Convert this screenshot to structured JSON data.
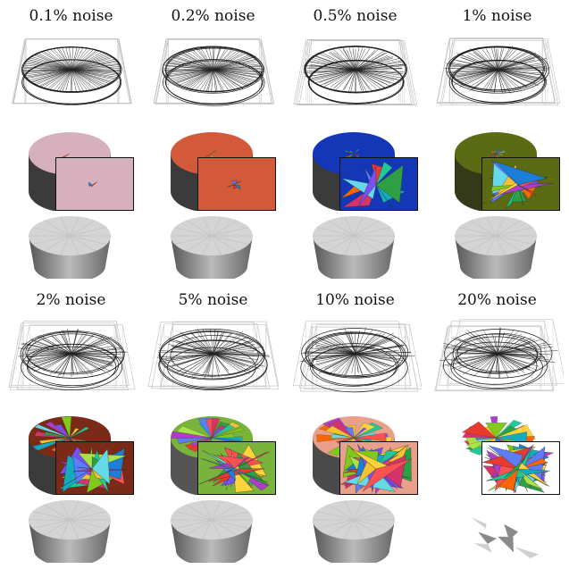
{
  "figure": {
    "panels": [
      {
        "label": "0.1% noise",
        "noise_percent": 0.1,
        "top_color": "#d6b0bd",
        "side_color": "#3b3b3b",
        "shards": 1
      },
      {
        "label": "0.2% noise",
        "noise_percent": 0.2,
        "top_color": "#d25a3a",
        "side_color": "#3b3b3b",
        "shards": 3
      },
      {
        "label": "0.5% noise",
        "noise_percent": 0.5,
        "top_color": "#1437b8",
        "side_color": "#3b3b3b",
        "shards": 8
      },
      {
        "label": "1% noise",
        "noise_percent": 1,
        "top_color": "#5a6b14",
        "side_color": "#343a18",
        "shards": 14
      },
      {
        "label": "2% noise",
        "noise_percent": 2,
        "top_color": "#7a2a16",
        "side_color": "#3b3b3b",
        "shards": 20
      },
      {
        "label": "5% noise",
        "noise_percent": 5,
        "top_color": "#79b33c",
        "side_color": "#555555",
        "shards": 26
      },
      {
        "label": "10% noise",
        "noise_percent": 10,
        "top_color": "#e9a08a",
        "side_color": "#4a4a4a",
        "shards": 34
      },
      {
        "label": "20% noise",
        "noise_percent": 20,
        "top_color": "#ffffff",
        "side_color": "#333333",
        "shards": 40
      }
    ]
  }
}
